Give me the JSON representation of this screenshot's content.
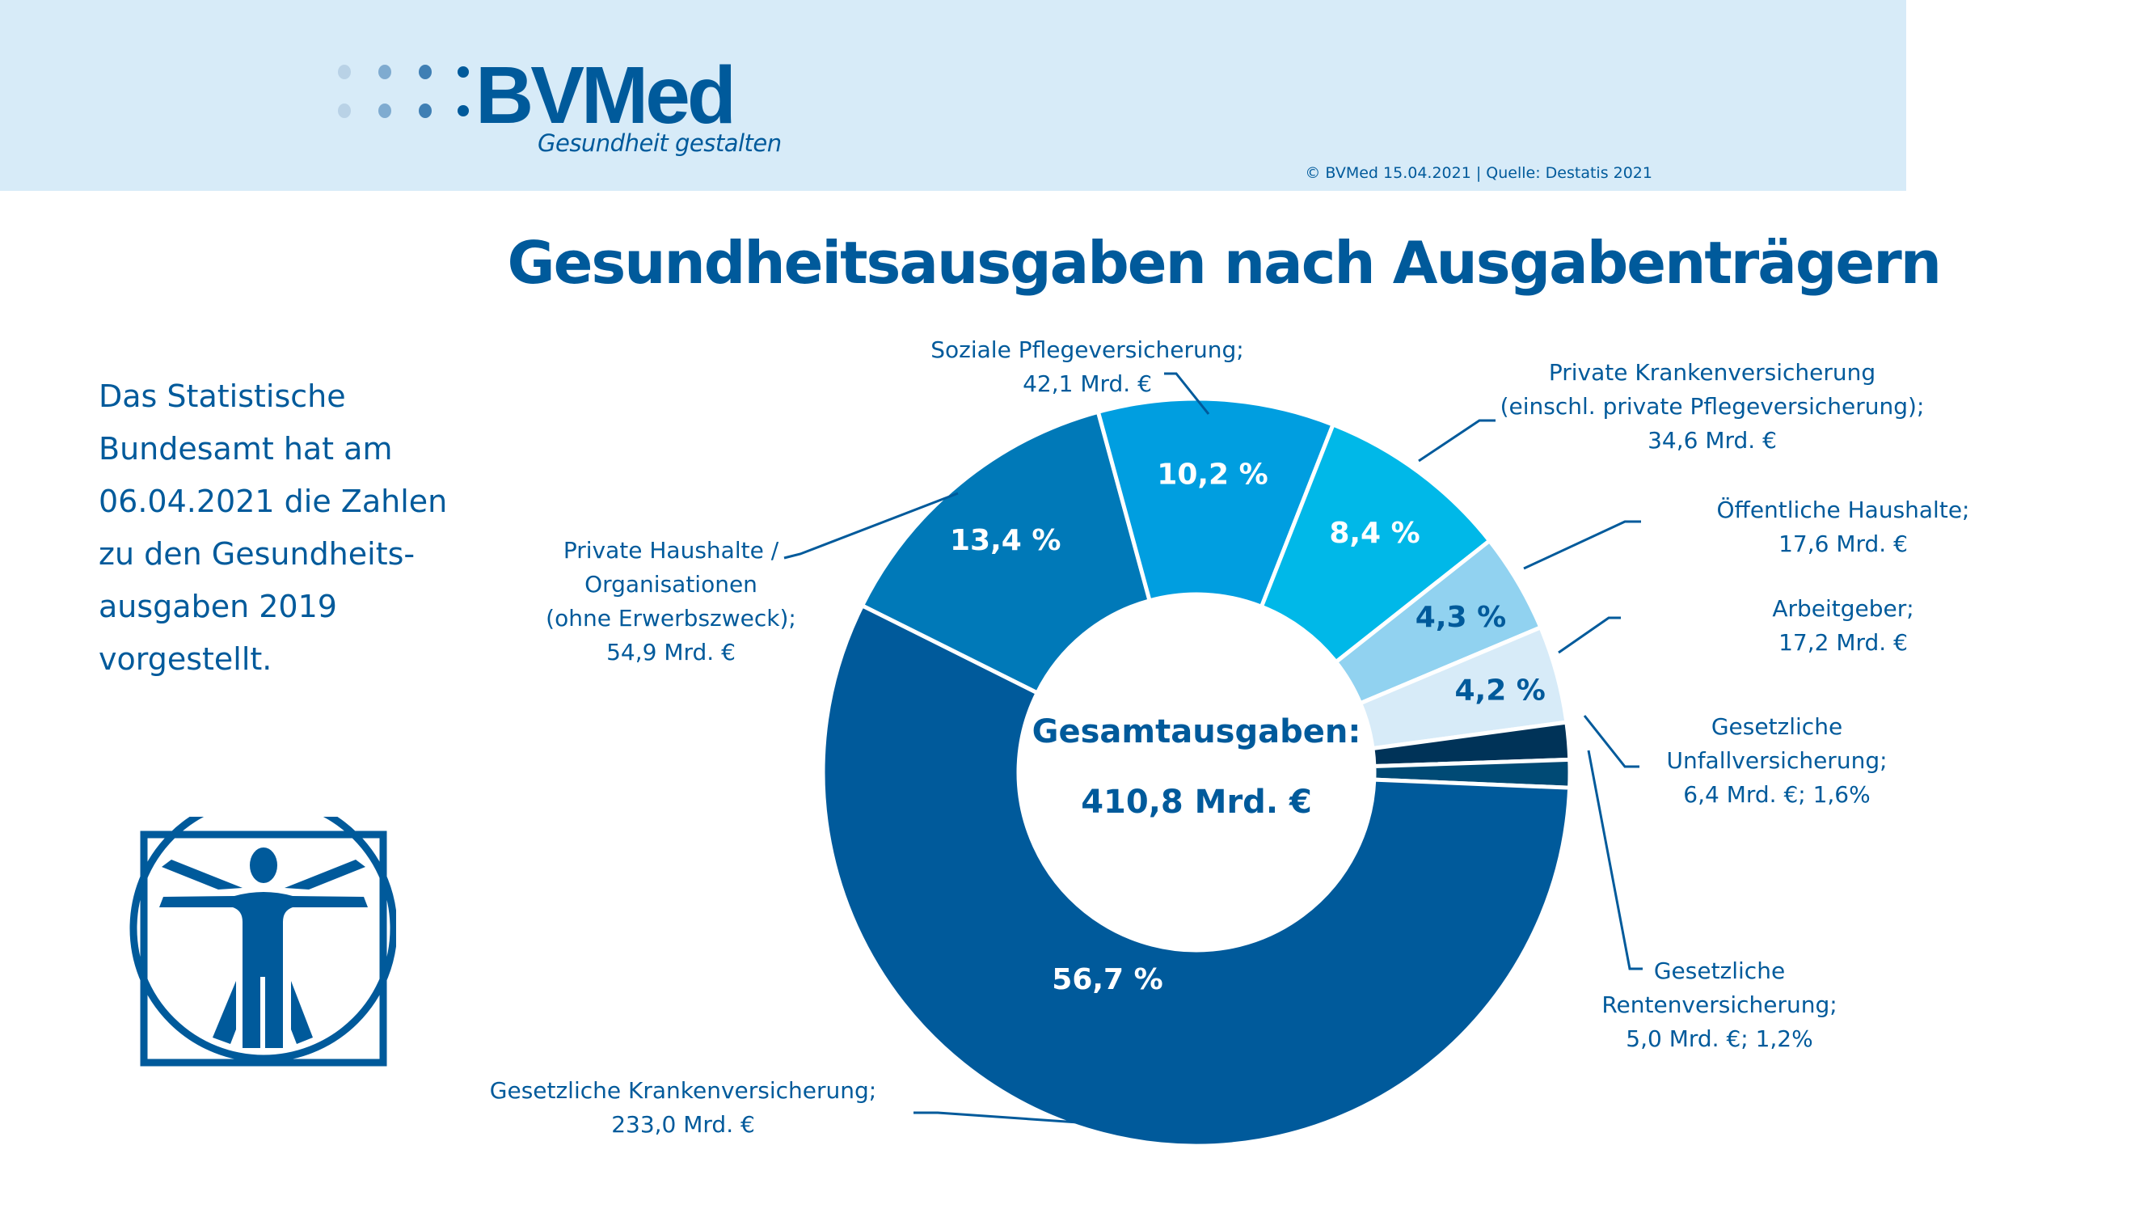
{
  "header": {
    "logo_text": "BVMed",
    "tagline": "Gesundheit gestalten",
    "copyright": "© BVMed 15.04.2021 | Quelle: Destatis 2021"
  },
  "title": "Gesundheitsausgaben nach Ausgabenträgern",
  "intro_lines": [
    "Das Statistische",
    "Bundesamt hat am",
    "06.04.2021 die Zahlen",
    "zu den Gesundheits-",
    "ausgaben 2019",
    "vorgestellt."
  ],
  "icon": "vitruvian-man-icon",
  "colors": {
    "brand": "#005a9b",
    "header_bg": "#d7ebf8"
  },
  "chart_data": {
    "type": "pie",
    "variant": "donut",
    "title": "Gesundheitsausgaben nach Ausgabenträgern",
    "center_label": [
      "Gesamtausgaben:",
      "410,8 Mrd. €"
    ],
    "total": 410.8,
    "unit": "Mrd. €",
    "segments": [
      {
        "name": "Private Haushalte / Organisationen (ohne Erwerbszweck)",
        "label_lines": [
          "Private Haushalte /",
          "Organisationen",
          "(ohne Erwerbszweck);",
          "54,9 Mrd. €"
        ],
        "value": 54.9,
        "percent": 13.4,
        "percent_label": "13,4 %",
        "color": "#0079b8",
        "text_color": "#ffffff"
      },
      {
        "name": "Soziale Pflegeversicherung",
        "label_lines": [
          "Soziale Pflegeversicherung;",
          "42,1 Mrd. €"
        ],
        "value": 42.1,
        "percent": 10.2,
        "percent_label": "10,2 %",
        "color": "#009ee0",
        "text_color": "#ffffff"
      },
      {
        "name": "Private Krankenversicherung (einschl. private Pflegeversicherung)",
        "label_lines": [
          "Private Krankenversicherung",
          "(einschl. private Pflegeversicherung);",
          "34,6 Mrd. €"
        ],
        "value": 34.6,
        "percent": 8.4,
        "percent_label": "8,4 %",
        "color": "#00b8e8",
        "text_color": "#ffffff"
      },
      {
        "name": "Öffentliche Haushalte",
        "label_lines": [
          "Öffentliche Haushalte;",
          "17,6 Mrd. €"
        ],
        "value": 17.6,
        "percent": 4.3,
        "percent_label": "4,3 %",
        "color": "#91d2f0",
        "text_color": "#005a9b"
      },
      {
        "name": "Arbeitgeber",
        "label_lines": [
          "Arbeitgeber;",
          "17,2 Mrd. €"
        ],
        "value": 17.2,
        "percent": 4.2,
        "percent_label": "4,2 %",
        "color": "#d7ebf8",
        "text_color": "#005a9b"
      },
      {
        "name": "Gesetzliche Unfallversicherung",
        "label_lines": [
          "Gesetzliche",
          "Unfallversicherung;",
          "6,4 Mrd. €; 1,6%"
        ],
        "value": 6.4,
        "percent": 1.6,
        "percent_label": "",
        "color": "#003358",
        "text_color": "#ffffff"
      },
      {
        "name": "Gesetzliche Rentenversicherung",
        "label_lines": [
          "Gesetzliche",
          "Rentenversicherung;",
          "5,0 Mrd. €; 1,2%"
        ],
        "value": 5.0,
        "percent": 1.2,
        "percent_label": "",
        "color": "#004a75",
        "text_color": "#ffffff"
      },
      {
        "name": "Gesetzliche Krankenversicherung",
        "label_lines": [
          "Gesetzliche Krankenversicherung;",
          "233,0 Mrd. €"
        ],
        "value": 233.0,
        "percent": 56.7,
        "percent_label": "56,7 %",
        "color": "#005a9b",
        "text_color": "#ffffff"
      }
    ]
  }
}
